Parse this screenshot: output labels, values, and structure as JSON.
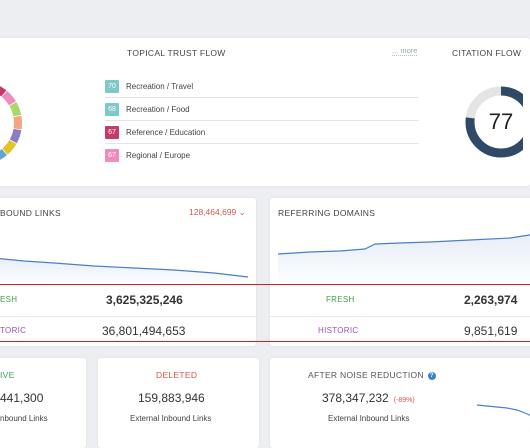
{
  "topical": {
    "title": "TOPICAL TRUST FLOW",
    "more": "... more",
    "items": [
      {
        "value": "70",
        "label": "Recreation / Travel",
        "color": "#7ec8c8"
      },
      {
        "value": "68",
        "label": "Recreation / Food",
        "color": "#7ec8c8"
      },
      {
        "value": "67",
        "label": "Reference / Education",
        "color": "#c23b6a"
      },
      {
        "value": "67",
        "label": "Regional / Europe",
        "color": "#f08bbf"
      }
    ]
  },
  "citation": {
    "title": "CITATION FLOW",
    "value": "77",
    "fraction": 0.77,
    "color": "#2e4a66",
    "track": "#e4e4e4"
  },
  "inbound": {
    "title": "INBOUND LINKS",
    "title_visible": "BOUND LINKS",
    "total": "128,464,699",
    "fresh_label": "ESH",
    "fresh_value": "3,625,325,246",
    "historic_label": "TORIC",
    "historic_value": "36,801,494,653"
  },
  "referring": {
    "title": "REFERRING DOMAINS",
    "fresh_label": "FRESH",
    "fresh_value": "2,263,974",
    "historic_label": "HISTORIC",
    "historic_value": "9,851,619"
  },
  "live": {
    "title": "IVE",
    "value": "441,300",
    "sub": "nbound Links"
  },
  "deleted": {
    "title": "DELETED",
    "value": "159,883,946",
    "sub": "External Inbound Links"
  },
  "noise": {
    "title": "AFTER NOISE REDUCTION",
    "value": "378,347,232",
    "pct": "(-89%)",
    "sub": "External Inbound Links"
  },
  "colors": {
    "fresh": "#3aa34a",
    "historic": "#a24fb3",
    "deleted": "#d9534f",
    "live": "#3aa34a",
    "line": "#4a7fc8",
    "highlight": "#d02020"
  }
}
